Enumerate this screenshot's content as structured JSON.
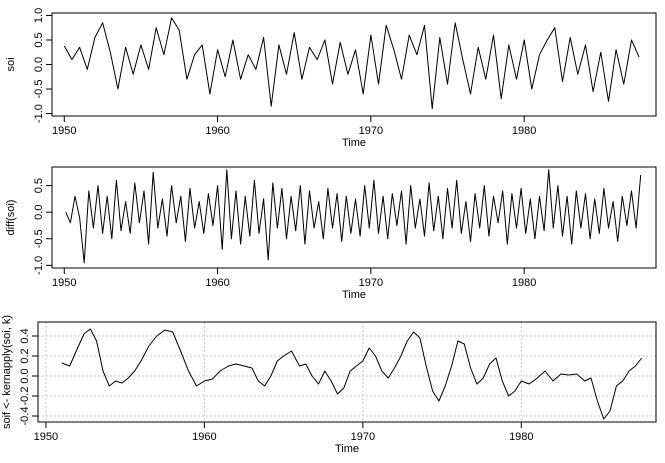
{
  "chart_data": [
    {
      "type": "line",
      "id": "soi",
      "xlabel": "Time",
      "ylabel": "soi",
      "xlim": [
        1949.2,
        1988.6
      ],
      "ylim": [
        -1.05,
        1.05
      ],
      "xticks": [
        1950,
        1960,
        1970,
        1980
      ],
      "yticks": [
        {
          "v": -1.0,
          "label": "-1.0"
        },
        {
          "v": -0.5,
          "label": "-0.5"
        },
        {
          "v": 0.0,
          "label": "0.0"
        },
        {
          "v": 0.5,
          "label": "0.5"
        },
        {
          "v": 1.0,
          "label": "1.0"
        }
      ],
      "grid": false,
      "series": [
        {
          "x": [
            1950.0,
            1950.5,
            1951.0,
            1951.5,
            1952.0,
            1952.5,
            1953.0,
            1953.5,
            1954.0,
            1954.5,
            1955.0,
            1955.5,
            1956.0,
            1956.5,
            1957.0,
            1957.5,
            1958.0,
            1958.5,
            1959.0,
            1959.5,
            1960.0,
            1960.5,
            1961.0,
            1961.5,
            1962.0,
            1962.5,
            1963.0,
            1963.5,
            1964.0,
            1964.5,
            1965.0,
            1965.5,
            1966.0,
            1966.5,
            1967.0,
            1967.5,
            1968.0,
            1968.5,
            1969.0,
            1969.5,
            1970.0,
            1970.5,
            1971.0,
            1971.5,
            1972.0,
            1972.5,
            1973.0,
            1973.5,
            1974.0,
            1974.5,
            1975.0,
            1975.5,
            1976.0,
            1976.5,
            1977.0,
            1977.5,
            1978.0,
            1978.5,
            1979.0,
            1979.5,
            1980.0,
            1980.5,
            1981.0,
            1981.5,
            1982.0,
            1982.5,
            1983.0,
            1983.5,
            1984.0,
            1984.5,
            1985.0,
            1985.5,
            1986.0,
            1986.5,
            1987.0,
            1987.5
          ],
          "y": [
            0.38,
            0.1,
            0.35,
            -0.1,
            0.55,
            0.85,
            0.25,
            -0.5,
            0.35,
            -0.2,
            0.4,
            -0.1,
            0.75,
            0.2,
            0.95,
            0.7,
            -0.3,
            0.2,
            0.4,
            -0.6,
            0.3,
            -0.25,
            0.5,
            -0.3,
            0.2,
            -0.1,
            0.55,
            -0.85,
            0.4,
            -0.2,
            0.65,
            -0.3,
            0.35,
            0.1,
            0.5,
            -0.4,
            0.45,
            -0.2,
            0.3,
            -0.6,
            0.6,
            -0.4,
            0.8,
            0.3,
            -0.3,
            0.6,
            0.2,
            0.8,
            -0.9,
            0.55,
            -0.4,
            0.85,
            0.1,
            -0.6,
            0.35,
            -0.3,
            0.6,
            -0.7,
            0.4,
            -0.3,
            0.5,
            -0.5,
            0.2,
            0.5,
            0.75,
            -0.35,
            0.55,
            -0.2,
            0.4,
            -0.55,
            0.25,
            -0.75,
            0.3,
            -0.4,
            0.5,
            0.15
          ]
        }
      ]
    },
    {
      "type": "line",
      "id": "diff",
      "xlabel": "Time",
      "ylabel": "diff(soi)",
      "xlim": [
        1949.2,
        1988.6
      ],
      "ylim": [
        -1.05,
        0.85
      ],
      "xticks": [
        1950,
        1960,
        1970,
        1980
      ],
      "yticks": [
        {
          "v": -1.0,
          "label": "-1.0"
        },
        {
          "v": -0.5,
          "label": "-0.5"
        },
        {
          "v": 0.0,
          "label": "0.0"
        },
        {
          "v": 0.5,
          "label": "0.5"
        }
      ],
      "grid": false,
      "series": [
        {
          "x": [
            1950.1,
            1950.4,
            1950.7,
            1951.0,
            1951.3,
            1951.6,
            1951.9,
            1952.2,
            1952.5,
            1952.8,
            1953.1,
            1953.4,
            1953.7,
            1954.0,
            1954.3,
            1954.6,
            1954.9,
            1955.2,
            1955.5,
            1955.8,
            1956.1,
            1956.4,
            1956.7,
            1957.0,
            1957.3,
            1957.6,
            1957.9,
            1958.2,
            1958.5,
            1958.8,
            1959.1,
            1959.4,
            1959.7,
            1960.0,
            1960.3,
            1960.6,
            1960.9,
            1961.2,
            1961.5,
            1961.8,
            1962.1,
            1962.4,
            1962.7,
            1963.0,
            1963.3,
            1963.6,
            1963.9,
            1964.2,
            1964.5,
            1964.8,
            1965.1,
            1965.4,
            1965.7,
            1966.0,
            1966.3,
            1966.6,
            1966.9,
            1967.2,
            1967.5,
            1967.8,
            1968.1,
            1968.4,
            1968.7,
            1969.0,
            1969.3,
            1969.6,
            1969.9,
            1970.2,
            1970.5,
            1970.8,
            1971.1,
            1971.4,
            1971.7,
            1972.0,
            1972.3,
            1972.6,
            1972.9,
            1973.2,
            1973.5,
            1973.8,
            1974.1,
            1974.4,
            1974.7,
            1975.0,
            1975.3,
            1975.6,
            1975.9,
            1976.2,
            1976.5,
            1976.8,
            1977.1,
            1977.4,
            1977.7,
            1978.0,
            1978.3,
            1978.6,
            1978.9,
            1979.2,
            1979.5,
            1979.8,
            1980.1,
            1980.4,
            1980.7,
            1981.0,
            1981.3,
            1981.6,
            1981.9,
            1982.2,
            1982.5,
            1982.8,
            1983.1,
            1983.4,
            1983.7,
            1984.0,
            1984.3,
            1984.6,
            1984.9,
            1985.2,
            1985.5,
            1985.8,
            1986.1,
            1986.4,
            1986.7,
            1987.0,
            1987.3,
            1987.6
          ],
          "y": [
            0.0,
            -0.2,
            0.3,
            -0.1,
            -0.95,
            0.4,
            -0.3,
            0.5,
            -0.4,
            0.3,
            -0.5,
            0.6,
            -0.35,
            0.2,
            -0.4,
            0.55,
            -0.2,
            0.4,
            -0.6,
            0.75,
            -0.3,
            0.25,
            -0.45,
            0.5,
            -0.2,
            0.3,
            -0.55,
            0.45,
            -0.3,
            0.2,
            -0.4,
            0.35,
            -0.25,
            0.5,
            -0.7,
            0.8,
            -0.5,
            0.4,
            -0.6,
            0.3,
            -0.45,
            0.6,
            -0.4,
            0.25,
            -0.9,
            0.55,
            -0.3,
            0.45,
            -0.5,
            0.3,
            -0.35,
            0.5,
            -0.6,
            0.4,
            -0.3,
            0.2,
            -0.5,
            0.45,
            -0.3,
            0.35,
            -0.55,
            0.3,
            -0.4,
            0.25,
            -0.45,
            0.5,
            -0.3,
            0.6,
            -0.4,
            0.3,
            -0.5,
            0.35,
            -0.25,
            0.4,
            -0.6,
            0.5,
            -0.3,
            0.25,
            -0.45,
            0.55,
            -0.35,
            0.3,
            -0.5,
            0.45,
            -0.3,
            0.6,
            -0.4,
            0.2,
            -0.55,
            0.35,
            -0.3,
            0.5,
            -0.45,
            0.3,
            -0.2,
            0.4,
            -0.6,
            0.35,
            -0.3,
            0.45,
            -0.4,
            0.25,
            -0.5,
            0.3,
            -0.35,
            0.8,
            -0.3,
            0.5,
            -0.45,
            0.3,
            -0.6,
            0.4,
            -0.3,
            0.35,
            -0.5,
            0.25,
            -0.4,
            0.45,
            -0.3,
            0.2,
            -0.55,
            0.3,
            -0.25,
            0.4,
            -0.3,
            0.7
          ]
        }
      ]
    },
    {
      "type": "line",
      "id": "smooth",
      "xlabel": "Time",
      "ylabel": "soif <- kernapply(soi, k)",
      "xlim": [
        1949.5,
        1988.5
      ],
      "ylim": [
        -0.46,
        0.54
      ],
      "xticks": [
        1950,
        1960,
        1970,
        1980
      ],
      "yticks": [
        {
          "v": -0.4,
          "label": "-0.4"
        },
        {
          "v": -0.2,
          "label": "-0.2"
        },
        {
          "v": 0.0,
          "label": "0.0"
        },
        {
          "v": 0.2,
          "label": "0.2"
        },
        {
          "v": 0.4,
          "label": "0.4"
        }
      ],
      "grid": true,
      "series": [
        {
          "x": [
            1951.0,
            1951.5,
            1952.0,
            1952.4,
            1952.8,
            1953.2,
            1953.6,
            1954.0,
            1954.4,
            1954.8,
            1955.2,
            1955.6,
            1956.0,
            1956.5,
            1957.0,
            1957.5,
            1958.0,
            1958.5,
            1959.0,
            1959.5,
            1960.0,
            1960.5,
            1961.0,
            1961.5,
            1962.0,
            1962.5,
            1963.0,
            1963.4,
            1963.8,
            1964.2,
            1964.6,
            1965.0,
            1965.5,
            1966.0,
            1966.4,
            1966.8,
            1967.2,
            1967.6,
            1968.0,
            1968.4,
            1968.8,
            1969.2,
            1969.6,
            1970.0,
            1970.4,
            1970.8,
            1971.2,
            1971.6,
            1972.0,
            1972.4,
            1972.8,
            1973.2,
            1973.6,
            1974.0,
            1974.4,
            1974.8,
            1975.2,
            1975.6,
            1976.0,
            1976.4,
            1976.8,
            1977.2,
            1977.6,
            1978.0,
            1978.4,
            1978.8,
            1979.2,
            1979.6,
            1980.0,
            1980.5,
            1981.0,
            1981.5,
            1982.0,
            1982.5,
            1983.0,
            1983.5,
            1984.0,
            1984.4,
            1984.8,
            1985.2,
            1985.6,
            1986.0,
            1986.4,
            1986.8,
            1987.2,
            1987.6
          ],
          "y": [
            0.13,
            0.1,
            0.28,
            0.42,
            0.47,
            0.35,
            0.05,
            -0.1,
            -0.05,
            -0.07,
            -0.02,
            0.05,
            0.15,
            0.3,
            0.4,
            0.46,
            0.44,
            0.25,
            0.05,
            -0.1,
            -0.05,
            -0.03,
            0.05,
            0.1,
            0.12,
            0.1,
            0.08,
            -0.05,
            -0.1,
            0.0,
            0.15,
            0.2,
            0.25,
            0.1,
            0.12,
            0.0,
            -0.08,
            0.05,
            -0.05,
            -0.18,
            -0.12,
            0.05,
            0.1,
            0.15,
            0.28,
            0.2,
            0.05,
            -0.02,
            0.08,
            0.2,
            0.35,
            0.44,
            0.38,
            0.1,
            -0.15,
            -0.25,
            -0.1,
            0.1,
            0.35,
            0.32,
            0.08,
            -0.08,
            -0.02,
            0.12,
            0.18,
            -0.05,
            -0.2,
            -0.15,
            -0.05,
            -0.08,
            -0.02,
            0.05,
            -0.05,
            0.02,
            0.01,
            0.02,
            -0.05,
            -0.02,
            -0.25,
            -0.43,
            -0.35,
            -0.1,
            -0.05,
            0.05,
            0.1,
            0.18
          ]
        }
      ]
    }
  ]
}
